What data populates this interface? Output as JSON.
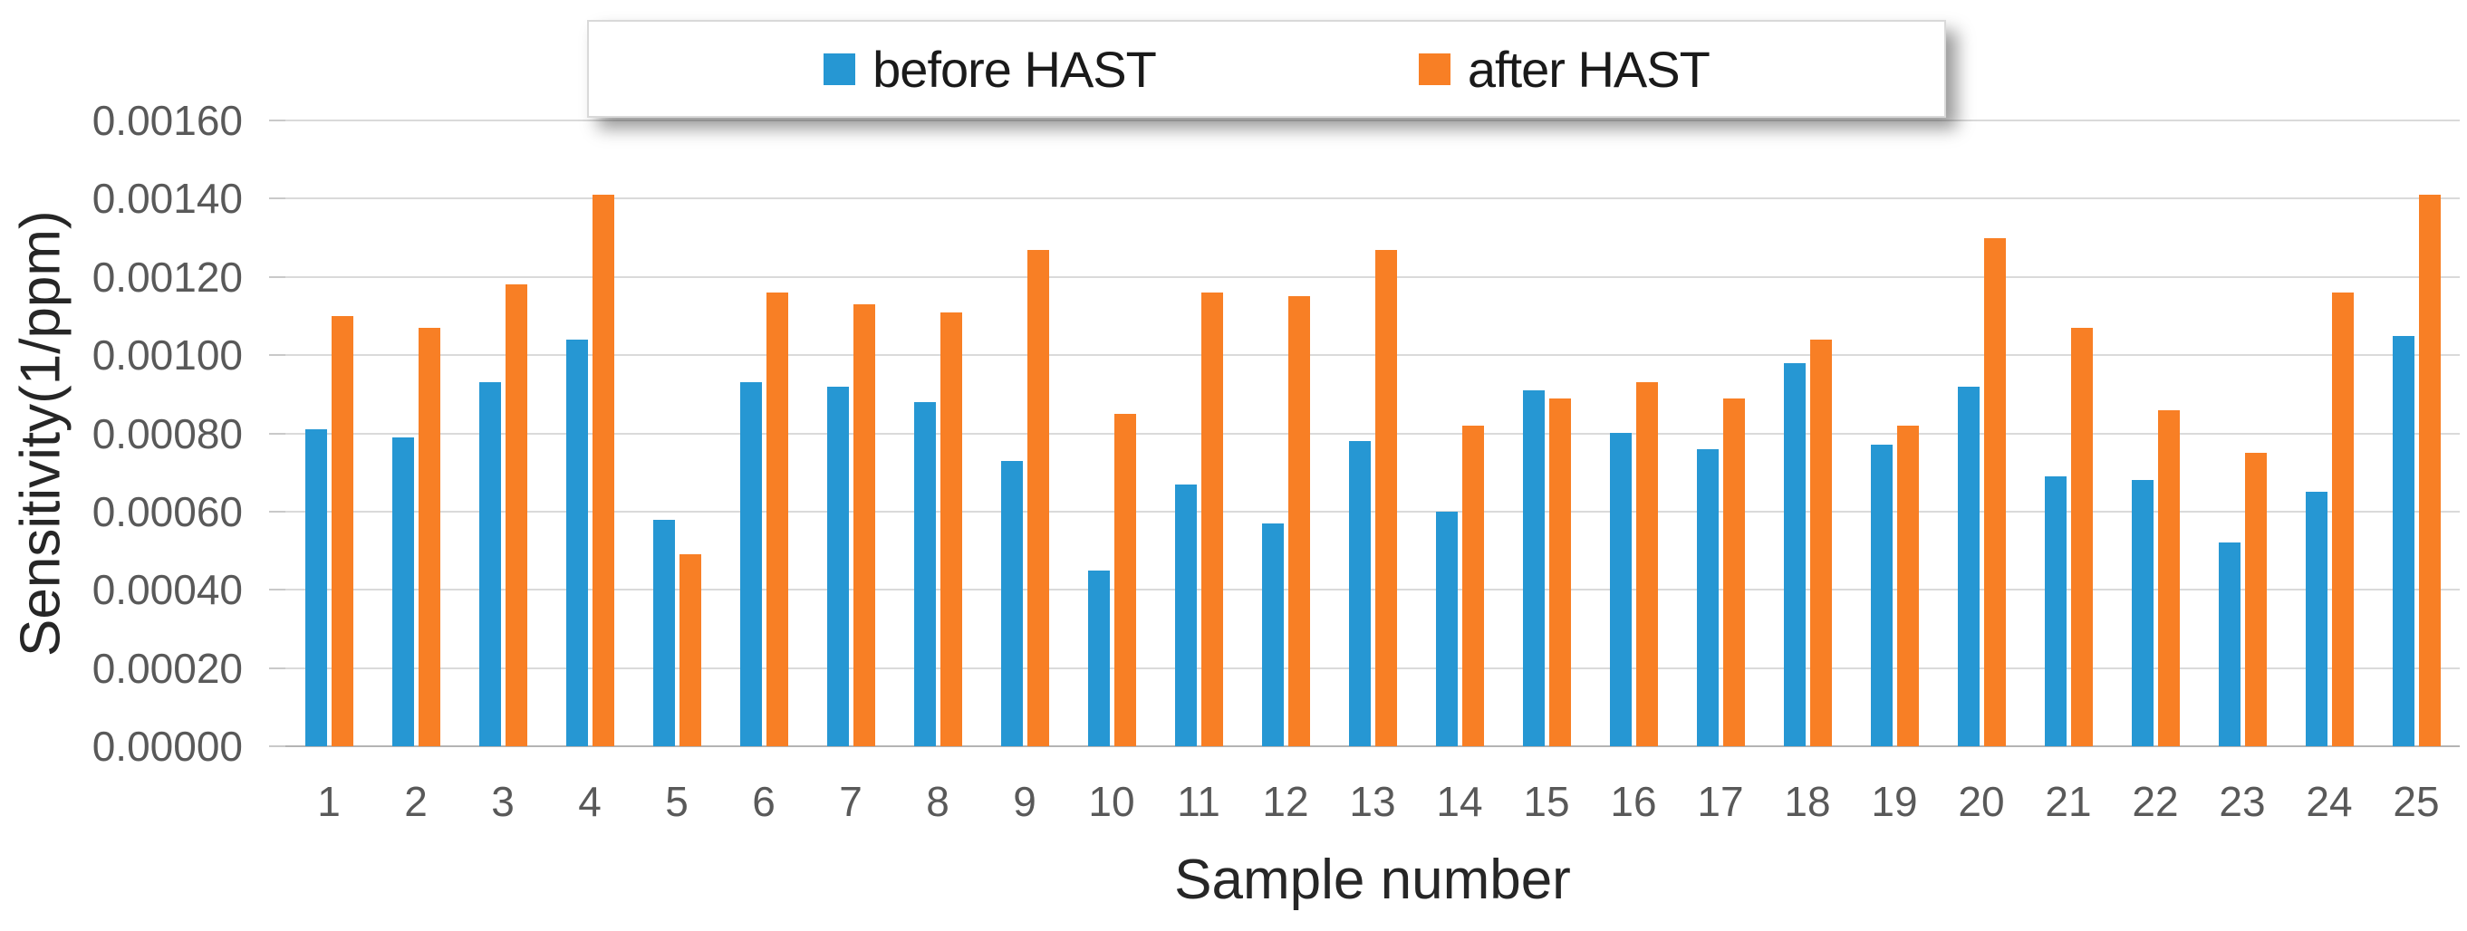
{
  "chart_data": {
    "type": "bar",
    "title": "",
    "xlabel": "Sample number",
    "ylabel": "Sensitivity(1/ppm)",
    "categories": [
      "1",
      "2",
      "3",
      "4",
      "5",
      "6",
      "7",
      "8",
      "9",
      "10",
      "11",
      "12",
      "13",
      "14",
      "15",
      "16",
      "17",
      "18",
      "19",
      "20",
      "21",
      "22",
      "23",
      "24",
      "25"
    ],
    "series": [
      {
        "name": "before HAST",
        "color": "#2697D3",
        "values": [
          0.00081,
          0.00079,
          0.00093,
          0.00104,
          0.00058,
          0.00093,
          0.00092,
          0.00088,
          0.00073,
          0.00045,
          0.00067,
          0.00057,
          0.00078,
          0.0006,
          0.00091,
          0.0008,
          0.00076,
          0.00098,
          0.00077,
          0.00092,
          0.00069,
          0.00068,
          0.00052,
          0.00065,
          0.00105
        ]
      },
      {
        "name": "after HAST",
        "color": "#F87F25",
        "values": [
          0.0011,
          0.00107,
          0.00118,
          0.00141,
          0.00049,
          0.00116,
          0.00113,
          0.00111,
          0.00127,
          0.00085,
          0.00116,
          0.00115,
          0.00127,
          0.00082,
          0.00089,
          0.00093,
          0.00089,
          0.00104,
          0.00082,
          0.0013,
          0.00107,
          0.00086,
          0.00075,
          0.00116,
          0.00141
        ]
      }
    ],
    "ylim": [
      0,
      0.0016
    ],
    "ytick_labels": [
      "0.00000",
      "0.00020",
      "0.00040",
      "0.00060",
      "0.00080",
      "0.00100",
      "0.00120",
      "0.00140",
      "0.00160"
    ],
    "grid": true,
    "legend_position": "top-center"
  },
  "colors": {
    "gridline": "#DADADA",
    "axis_line": "#B4B4B4",
    "tick_text": "#595959",
    "title_text": "#262626",
    "background": "#FFFFFF"
  }
}
